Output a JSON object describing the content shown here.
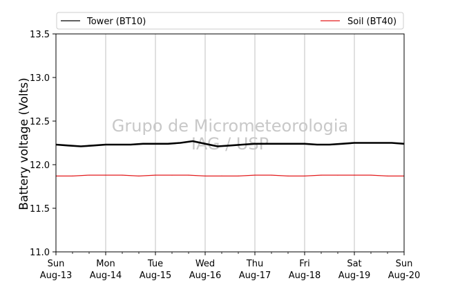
{
  "chart_data": {
    "type": "line",
    "ylabel": "Battery voltage (Volts)",
    "ylim": [
      11.0,
      13.5
    ],
    "yticks": [
      11.0,
      11.5,
      12.0,
      12.5,
      13.0,
      13.5
    ],
    "ytick_labels": [
      "11.0",
      "11.5",
      "12.0",
      "12.5",
      "13.0",
      "13.5"
    ],
    "xlim": [
      "2017-08-13",
      "2017-08-20"
    ],
    "x_ticks": [
      {
        "day": "Sun",
        "date": "Aug-13"
      },
      {
        "day": "Mon",
        "date": "Aug-14"
      },
      {
        "day": "Tue",
        "date": "Aug-15"
      },
      {
        "day": "Wed",
        "date": "Aug-16"
      },
      {
        "day": "Thu",
        "date": "Aug-17"
      },
      {
        "day": "Fri",
        "date": "Aug-18"
      },
      {
        "day": "Sat",
        "date": "Aug-19"
      },
      {
        "day": "Sun",
        "date": "Aug-20"
      }
    ],
    "minor_ticks_per_day": 2,
    "grid": "vertical",
    "legend": "top-outside",
    "watermark": [
      "Grupo de Micrometeorologia",
      "IAG / USP"
    ],
    "series": [
      {
        "name": "Tower (BT10)",
        "color": "#000000",
        "x": [
          "2017-08-13T00:00",
          "2017-08-13T06:00",
          "2017-08-13T12:00",
          "2017-08-13T18:00",
          "2017-08-14T00:00",
          "2017-08-14T06:00",
          "2017-08-14T12:00",
          "2017-08-14T18:00",
          "2017-08-15T00:00",
          "2017-08-15T06:00",
          "2017-08-15T12:00",
          "2017-08-15T18:00",
          "2017-08-16T00:00",
          "2017-08-16T06:00",
          "2017-08-16T12:00",
          "2017-08-16T18:00",
          "2017-08-17T00:00",
          "2017-08-17T06:00",
          "2017-08-17T12:00",
          "2017-08-17T18:00",
          "2017-08-18T00:00",
          "2017-08-18T06:00",
          "2017-08-18T12:00",
          "2017-08-18T18:00",
          "2017-08-19T00:00",
          "2017-08-19T06:00",
          "2017-08-19T12:00",
          "2017-08-19T18:00",
          "2017-08-20T00:00"
        ],
        "values": [
          12.23,
          12.22,
          12.21,
          12.22,
          12.23,
          12.23,
          12.23,
          12.24,
          12.24,
          12.24,
          12.25,
          12.27,
          12.24,
          12.21,
          12.22,
          12.23,
          12.24,
          12.24,
          12.24,
          12.24,
          12.24,
          12.23,
          12.23,
          12.24,
          12.25,
          12.25,
          12.25,
          12.25,
          12.24
        ]
      },
      {
        "name": "Soil (BT40)",
        "color": "#e31a1c",
        "x": [
          "2017-08-13T00:00",
          "2017-08-13T08:00",
          "2017-08-13T16:00",
          "2017-08-14T00:00",
          "2017-08-14T08:00",
          "2017-08-14T16:00",
          "2017-08-15T00:00",
          "2017-08-15T08:00",
          "2017-08-15T16:00",
          "2017-08-16T00:00",
          "2017-08-16T08:00",
          "2017-08-16T16:00",
          "2017-08-17T00:00",
          "2017-08-17T08:00",
          "2017-08-17T16:00",
          "2017-08-18T00:00",
          "2017-08-18T08:00",
          "2017-08-18T16:00",
          "2017-08-19T00:00",
          "2017-08-19T08:00",
          "2017-08-19T16:00",
          "2017-08-20T00:00"
        ],
        "values": [
          11.87,
          11.87,
          11.88,
          11.88,
          11.88,
          11.87,
          11.88,
          11.88,
          11.88,
          11.87,
          11.87,
          11.87,
          11.88,
          11.88,
          11.87,
          11.87,
          11.88,
          11.88,
          11.88,
          11.88,
          11.87,
          11.87
        ]
      }
    ]
  }
}
